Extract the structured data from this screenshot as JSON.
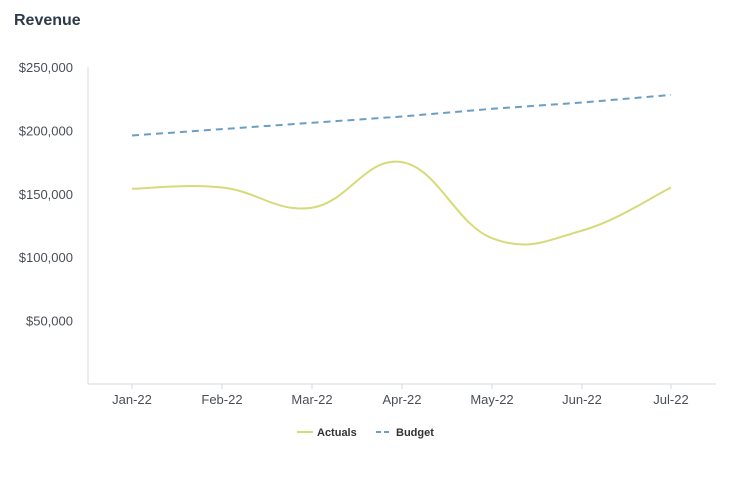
{
  "chart_data": {
    "type": "line",
    "title": "Revenue",
    "categories": [
      "Jan-22",
      "Feb-22",
      "Mar-22",
      "Apr-22",
      "May-22",
      "Jun-22",
      "Jul-22"
    ],
    "series": [
      {
        "name": "Actuals",
        "values": [
          154000,
          155000,
          139000,
          175000,
          115000,
          121000,
          155000
        ],
        "color": "#d6db7a",
        "style": "solid",
        "smooth": true
      },
      {
        "name": "Budget",
        "values": [
          196000,
          201000,
          206000,
          211000,
          217000,
          222000,
          228000
        ],
        "color": "#6b9ec4",
        "style": "dashed",
        "smooth": false
      }
    ],
    "ylim": [
      0,
      250000
    ],
    "yticks": [
      50000,
      100000,
      150000,
      200000,
      250000
    ],
    "ytick_labels": [
      "$50,000",
      "$100,000",
      "$150,000",
      "$200,000",
      "$250,000"
    ],
    "grid": false,
    "legend_position": "bottom"
  }
}
